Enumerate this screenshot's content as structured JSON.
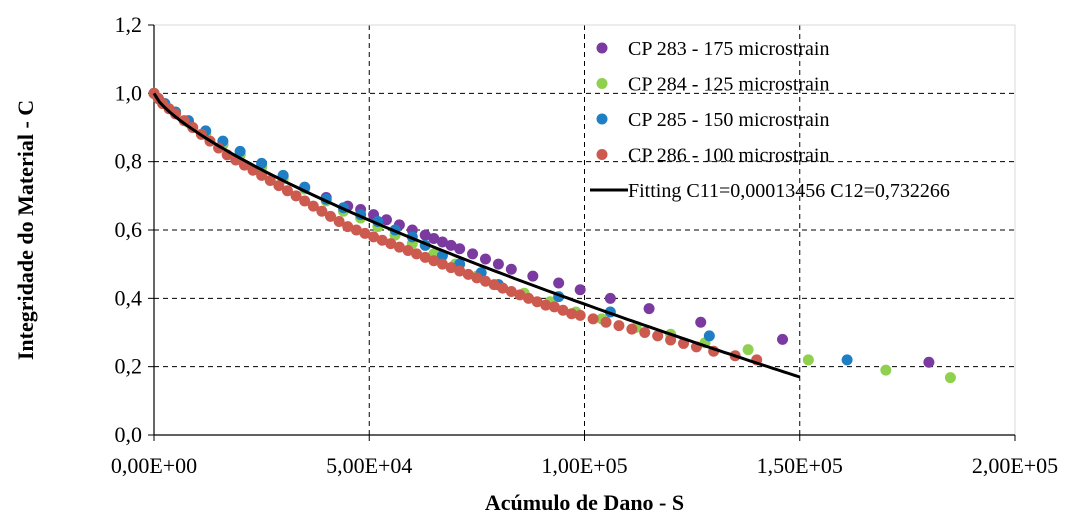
{
  "chart_data": {
    "type": "scatter",
    "xlabel": "Acúmulo de Dano - S",
    "ylabel": "Integridade do Material - C",
    "xlim": [
      0,
      200000
    ],
    "ylim": [
      0,
      1.2
    ],
    "x_ticks": [
      "0,00E+00",
      "5,00E+04",
      "1,00E+05",
      "1,50E+05",
      "2,00E+05"
    ],
    "y_ticks": [
      "0,0",
      "0,2",
      "0,4",
      "0,6",
      "0,8",
      "1,0",
      "1,2"
    ],
    "grid": "dashed",
    "legend_position": "top-right",
    "series": [
      {
        "name": "CP 283 - 175 microstrain",
        "kind": "scatter",
        "color": "#7b3aa0",
        "points": [
          [
            0,
            1.0
          ],
          [
            1000,
            0.985
          ],
          [
            2500,
            0.97
          ],
          [
            5000,
            0.945
          ],
          [
            8000,
            0.915
          ],
          [
            12000,
            0.88
          ],
          [
            16000,
            0.85
          ],
          [
            20000,
            0.82
          ],
          [
            25000,
            0.785
          ],
          [
            30000,
            0.755
          ],
          [
            35000,
            0.725
          ],
          [
            40000,
            0.695
          ],
          [
            45000,
            0.67
          ],
          [
            48000,
            0.66
          ],
          [
            51000,
            0.645
          ],
          [
            54000,
            0.63
          ],
          [
            57000,
            0.615
          ],
          [
            60000,
            0.6
          ],
          [
            63000,
            0.585
          ],
          [
            65000,
            0.575
          ],
          [
            67000,
            0.565
          ],
          [
            69000,
            0.555
          ],
          [
            71000,
            0.545
          ],
          [
            74000,
            0.53
          ],
          [
            77000,
            0.515
          ],
          [
            80000,
            0.5
          ],
          [
            83000,
            0.485
          ],
          [
            88000,
            0.465
          ],
          [
            94000,
            0.445
          ],
          [
            99000,
            0.425
          ],
          [
            106000,
            0.4
          ],
          [
            115000,
            0.37
          ],
          [
            127000,
            0.33
          ],
          [
            146000,
            0.28
          ],
          [
            180000,
            0.213
          ]
        ]
      },
      {
        "name": "CP 284 - 125 microstrain",
        "kind": "scatter",
        "color": "#8fd14f",
        "points": [
          [
            0,
            1.0
          ],
          [
            1000,
            0.985
          ],
          [
            2500,
            0.97
          ],
          [
            5000,
            0.945
          ],
          [
            8000,
            0.915
          ],
          [
            12000,
            0.88
          ],
          [
            16000,
            0.85
          ],
          [
            20000,
            0.82
          ],
          [
            25000,
            0.785
          ],
          [
            30000,
            0.75
          ],
          [
            35000,
            0.72
          ],
          [
            40000,
            0.685
          ],
          [
            44000,
            0.655
          ],
          [
            48000,
            0.635
          ],
          [
            52000,
            0.61
          ],
          [
            56000,
            0.585
          ],
          [
            60000,
            0.56
          ],
          [
            65000,
            0.53
          ],
          [
            70000,
            0.5
          ],
          [
            75000,
            0.465
          ],
          [
            80000,
            0.44
          ],
          [
            86000,
            0.415
          ],
          [
            92000,
            0.39
          ],
          [
            98000,
            0.36
          ],
          [
            104000,
            0.34
          ],
          [
            112000,
            0.315
          ],
          [
            120000,
            0.295
          ],
          [
            128000,
            0.27
          ],
          [
            138000,
            0.25
          ],
          [
            152000,
            0.22
          ],
          [
            170000,
            0.19
          ],
          [
            185000,
            0.168
          ]
        ]
      },
      {
        "name": "CP 285 - 150 microstrain",
        "kind": "scatter",
        "color": "#1f7fc4",
        "points": [
          [
            0,
            1.0
          ],
          [
            1000,
            0.985
          ],
          [
            2500,
            0.97
          ],
          [
            5000,
            0.945
          ],
          [
            8000,
            0.92
          ],
          [
            12000,
            0.89
          ],
          [
            16000,
            0.86
          ],
          [
            20000,
            0.83
          ],
          [
            25000,
            0.795
          ],
          [
            30000,
            0.76
          ],
          [
            35000,
            0.725
          ],
          [
            40000,
            0.69
          ],
          [
            44000,
            0.665
          ],
          [
            48000,
            0.645
          ],
          [
            52000,
            0.625
          ],
          [
            56000,
            0.6
          ],
          [
            60000,
            0.58
          ],
          [
            63000,
            0.555
          ],
          [
            67000,
            0.525
          ],
          [
            71000,
            0.5
          ],
          [
            76000,
            0.475
          ],
          [
            80000,
            0.44
          ],
          [
            94000,
            0.405
          ],
          [
            106000,
            0.36
          ],
          [
            129000,
            0.29
          ],
          [
            161000,
            0.22
          ]
        ]
      },
      {
        "name": "CP 286 - 100 microstrain",
        "kind": "scatter",
        "color": "#cc5a4f",
        "points": [
          [
            0,
            1.0
          ],
          [
            1000,
            0.985
          ],
          [
            2000,
            0.97
          ],
          [
            3500,
            0.955
          ],
          [
            5000,
            0.94
          ],
          [
            7000,
            0.92
          ],
          [
            9000,
            0.9
          ],
          [
            11000,
            0.88
          ],
          [
            13000,
            0.86
          ],
          [
            15000,
            0.84
          ],
          [
            17000,
            0.82
          ],
          [
            19000,
            0.805
          ],
          [
            21000,
            0.79
          ],
          [
            23000,
            0.775
          ],
          [
            25000,
            0.76
          ],
          [
            27000,
            0.745
          ],
          [
            29000,
            0.73
          ],
          [
            31000,
            0.715
          ],
          [
            33000,
            0.7
          ],
          [
            35000,
            0.685
          ],
          [
            37000,
            0.67
          ],
          [
            39000,
            0.655
          ],
          [
            41000,
            0.64
          ],
          [
            43000,
            0.625
          ],
          [
            45000,
            0.61
          ],
          [
            47000,
            0.6
          ],
          [
            49000,
            0.59
          ],
          [
            51000,
            0.58
          ],
          [
            53000,
            0.57
          ],
          [
            55000,
            0.56
          ],
          [
            57000,
            0.55
          ],
          [
            59000,
            0.54
          ],
          [
            61000,
            0.53
          ],
          [
            63000,
            0.52
          ],
          [
            65000,
            0.51
          ],
          [
            67000,
            0.5
          ],
          [
            69000,
            0.49
          ],
          [
            71000,
            0.48
          ],
          [
            73000,
            0.47
          ],
          [
            75000,
            0.46
          ],
          [
            77000,
            0.45
          ],
          [
            79000,
            0.44
          ],
          [
            81000,
            0.43
          ],
          [
            83000,
            0.42
          ],
          [
            85000,
            0.41
          ],
          [
            87000,
            0.4
          ],
          [
            89000,
            0.39
          ],
          [
            91000,
            0.38
          ],
          [
            93000,
            0.375
          ],
          [
            95000,
            0.365
          ],
          [
            97000,
            0.355
          ],
          [
            99000,
            0.35
          ],
          [
            102000,
            0.34
          ],
          [
            105000,
            0.33
          ],
          [
            108000,
            0.32
          ],
          [
            111000,
            0.31
          ],
          [
            114000,
            0.3
          ],
          [
            117000,
            0.29
          ],
          [
            120000,
            0.278
          ],
          [
            123000,
            0.268
          ],
          [
            126000,
            0.258
          ],
          [
            130000,
            0.245
          ],
          [
            135000,
            0.232
          ],
          [
            140000,
            0.22
          ]
        ]
      },
      {
        "name": "Fitting C11=0,00013456 C12=0,732266",
        "kind": "line",
        "color": "#000000",
        "c11": 0.00013456,
        "c12": 0.732266,
        "x_range": [
          0,
          150000
        ]
      }
    ]
  }
}
